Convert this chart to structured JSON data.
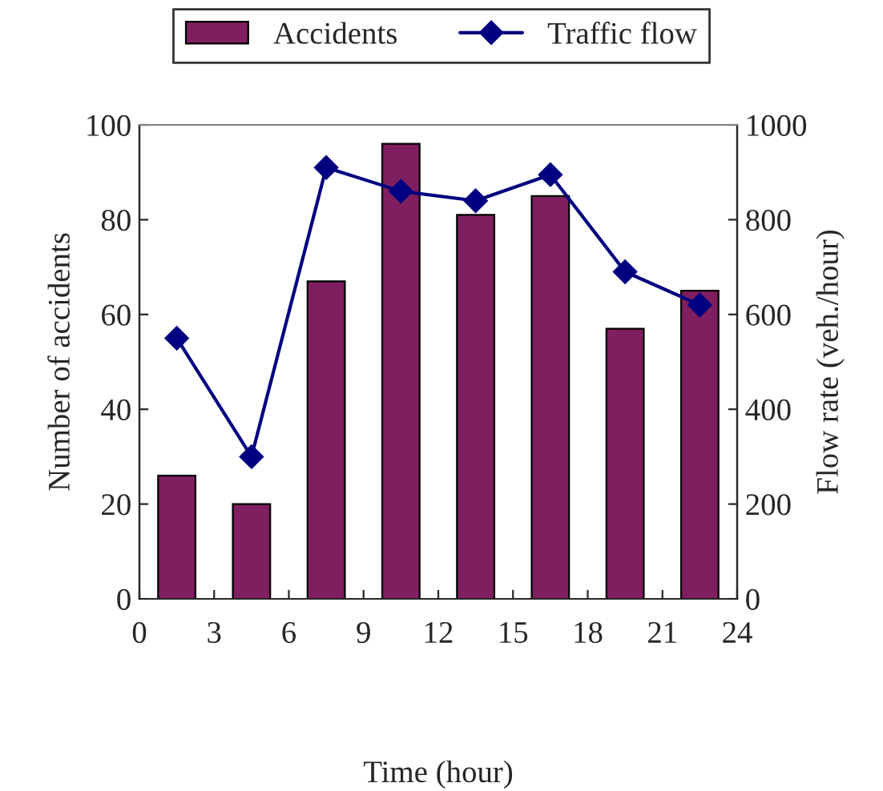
{
  "chart_data": {
    "type": "bar",
    "xlabel": "Time (hour)",
    "ylabel": "Number of accidents",
    "y2label": "Flow rate (veh./hour)",
    "x": [
      1.5,
      4.5,
      7.5,
      10.5,
      13.5,
      16.5,
      19.5,
      22.5
    ],
    "series": [
      {
        "name": "Accidents",
        "color": "#7f1f5f",
        "values": [
          26,
          20,
          67,
          96,
          81,
          85,
          57,
          65
        ]
      },
      {
        "name": "Traffic flow",
        "type": "line",
        "axis": "y2",
        "color": "#000080",
        "marker": "diamond",
        "values": [
          550,
          300,
          910,
          860,
          840,
          895,
          690,
          620
        ]
      }
    ],
    "xlim": [
      0,
      24
    ],
    "xticks": [
      0,
      3,
      6,
      9,
      12,
      15,
      18,
      21,
      24
    ],
    "ylim": [
      0,
      100
    ],
    "yticks": [
      0,
      20,
      40,
      60,
      80,
      100
    ],
    "y2lim": [
      0,
      1000
    ],
    "y2ticks": [
      0,
      200,
      400,
      600,
      800,
      1000
    ],
    "grid": false,
    "legend": "top"
  }
}
